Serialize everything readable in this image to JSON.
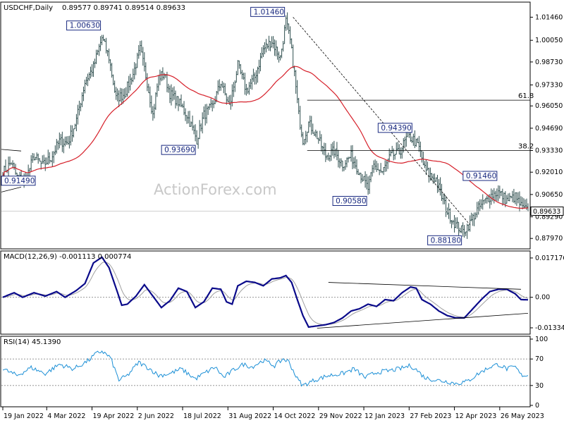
{
  "chart_data": {
    "type": "candlestick",
    "symbol_label": "USDCHF,Daily",
    "ohlc_label": "0.89577 0.89741 0.89514 0.89633",
    "last_price": 0.89633,
    "last_price_label": "0.89633",
    "watermark": "ActionForex.com",
    "price_axis": {
      "range": [
        0.8742,
        1.0225
      ],
      "ticks": [
        "1.01460",
        "1.00050",
        "0.98730",
        "0.97330",
        "0.96050",
        "0.94690",
        "0.93330",
        "0.92010",
        "0.90650",
        "0.89290",
        "0.87970"
      ],
      "tick_values": [
        1.0146,
        1.0005,
        0.9873,
        0.9733,
        0.9605,
        0.9469,
        0.9333,
        0.9201,
        0.9065,
        0.8929,
        0.8797
      ]
    },
    "x_axis": {
      "ticks": [
        "19 Jan 2022",
        "4 Mar 2022",
        "19 Apr 2022",
        "2 Jun 2022",
        "18 Jul 2022",
        "31 Aug 2022",
        "14 Oct 2022",
        "29 Nov 2022",
        "12 Jan 2023",
        "27 Feb 2023",
        "12 Apr 2023",
        "26 May 2023"
      ],
      "tick_index": [
        0,
        31,
        63,
        95,
        127,
        159,
        191,
        223,
        255,
        287,
        319,
        351
      ]
    },
    "bars_total": 372,
    "moving_average": {
      "period": 55,
      "color": "#d6202a"
    },
    "fib_levels": [
      {
        "label": "61.8",
        "price": 0.964
      },
      {
        "label": "38.2",
        "price": 0.9333
      }
    ],
    "swing_points": [
      {
        "label": "0.91490",
        "index": 0,
        "price": 0.9149,
        "pos": "left"
      },
      {
        "label": "1.00630",
        "index": 70,
        "price": 1.0063,
        "pos": "above-left"
      },
      {
        "label": "0.93690",
        "index": 137,
        "price": 0.9369,
        "pos": "below-left"
      },
      {
        "label": "1.01460",
        "index": 200,
        "price": 1.0146,
        "pos": "above-left"
      },
      {
        "label": "0.90580",
        "index": 258,
        "price": 0.9058,
        "pos": "below-left"
      },
      {
        "label": "0.94390",
        "index": 290,
        "price": 0.9439,
        "pos": "above-left"
      },
      {
        "label": "0.88180",
        "index": 325,
        "price": 0.8818,
        "pos": "below-left"
      },
      {
        "label": "0.91460",
        "index": 350,
        "price": 0.9146,
        "pos": "above-left"
      }
    ],
    "anchors": [
      [
        0,
        0.92
      ],
      [
        6,
        0.926
      ],
      [
        10,
        0.917
      ],
      [
        16,
        0.915
      ],
      [
        22,
        0.93
      ],
      [
        28,
        0.924
      ],
      [
        34,
        0.929
      ],
      [
        40,
        0.939
      ],
      [
        46,
        0.938
      ],
      [
        52,
        0.952
      ],
      [
        58,
        0.975
      ],
      [
        64,
        0.984
      ],
      [
        70,
        1.002
      ],
      [
        75,
        0.99
      ],
      [
        80,
        0.965
      ],
      [
        86,
        0.968
      ],
      [
        92,
        0.98
      ],
      [
        97,
        0.995
      ],
      [
        102,
        0.975
      ],
      [
        106,
        0.955
      ],
      [
        110,
        0.978
      ],
      [
        114,
        0.98
      ],
      [
        118,
        0.968
      ],
      [
        124,
        0.963
      ],
      [
        130,
        0.955
      ],
      [
        137,
        0.94
      ],
      [
        142,
        0.955
      ],
      [
        148,
        0.96
      ],
      [
        154,
        0.975
      ],
      [
        160,
        0.96
      ],
      [
        166,
        0.985
      ],
      [
        172,
        0.97
      ],
      [
        178,
        0.978
      ],
      [
        184,
        0.995
      ],
      [
        190,
        1.0
      ],
      [
        196,
        0.99
      ],
      [
        200,
        1.012
      ],
      [
        203,
        1.0
      ],
      [
        206,
        0.98
      ],
      [
        209,
        0.955
      ],
      [
        212,
        0.94
      ],
      [
        216,
        0.95
      ],
      [
        222,
        0.942
      ],
      [
        228,
        0.93
      ],
      [
        234,
        0.933
      ],
      [
        240,
        0.925
      ],
      [
        246,
        0.93
      ],
      [
        252,
        0.92
      ],
      [
        258,
        0.91
      ],
      [
        262,
        0.924
      ],
      [
        268,
        0.92
      ],
      [
        274,
        0.93
      ],
      [
        280,
        0.932
      ],
      [
        286,
        0.942
      ],
      [
        290,
        0.94
      ],
      [
        294,
        0.935
      ],
      [
        298,
        0.922
      ],
      [
        302,
        0.918
      ],
      [
        306,
        0.916
      ],
      [
        310,
        0.905
      ],
      [
        314,
        0.896
      ],
      [
        320,
        0.888
      ],
      [
        325,
        0.884
      ],
      [
        330,
        0.889
      ],
      [
        335,
        0.897
      ],
      [
        340,
        0.902
      ],
      [
        345,
        0.906
      ],
      [
        350,
        0.908
      ],
      [
        356,
        0.903
      ],
      [
        362,
        0.905
      ],
      [
        367,
        0.898
      ],
      [
        371,
        0.8963
      ]
    ],
    "macd": {
      "label": "MACD(12,26,9) -0.001113 0.000774",
      "range": [
        -0.0155,
        0.019
      ],
      "ticks": [
        "0.017176",
        "0.00",
        "-0.01334"
      ],
      "tick_values": [
        0.017176,
        0.0,
        -0.01334
      ],
      "line_color": "#0a0a8a",
      "signal_color": "#a0a0a0",
      "anchors": [
        [
          0,
          0.0
        ],
        [
          8,
          0.002
        ],
        [
          14,
          0.0
        ],
        [
          22,
          0.002
        ],
        [
          30,
          0.0005
        ],
        [
          38,
          0.0025
        ],
        [
          44,
          0.0
        ],
        [
          52,
          0.003
        ],
        [
          58,
          0.006
        ],
        [
          64,
          0.015
        ],
        [
          70,
          0.0175
        ],
        [
          75,
          0.013
        ],
        [
          80,
          0.004
        ],
        [
          84,
          -0.0035
        ],
        [
          88,
          -0.003
        ],
        [
          94,
          0.0005
        ],
        [
          100,
          0.0055
        ],
        [
          106,
          0.0005
        ],
        [
          112,
          -0.0045
        ],
        [
          118,
          -0.0015
        ],
        [
          124,
          0.004
        ],
        [
          130,
          0.0025
        ],
        [
          136,
          -0.0045
        ],
        [
          142,
          -0.002
        ],
        [
          148,
          0.004
        ],
        [
          154,
          0.0035
        ],
        [
          158,
          -0.002
        ],
        [
          162,
          -0.003
        ],
        [
          166,
          0.005
        ],
        [
          172,
          0.007
        ],
        [
          178,
          0.0065
        ],
        [
          184,
          0.005
        ],
        [
          190,
          0.008
        ],
        [
          196,
          0.0085
        ],
        [
          200,
          0.0095
        ],
        [
          204,
          0.0065
        ],
        [
          208,
          -0.001
        ],
        [
          212,
          -0.008
        ],
        [
          216,
          -0.013
        ],
        [
          222,
          -0.0125
        ],
        [
          228,
          -0.012
        ],
        [
          234,
          -0.011
        ],
        [
          240,
          -0.009
        ],
        [
          246,
          -0.006
        ],
        [
          252,
          -0.005
        ],
        [
          258,
          -0.003
        ],
        [
          264,
          -0.004
        ],
        [
          270,
          -0.001
        ],
        [
          276,
          -0.0015
        ],
        [
          282,
          0.002
        ],
        [
          288,
          0.0045
        ],
        [
          292,
          0.004
        ],
        [
          296,
          -0.001
        ],
        [
          302,
          -0.003
        ],
        [
          308,
          -0.006
        ],
        [
          314,
          -0.008
        ],
        [
          320,
          -0.009
        ],
        [
          326,
          -0.009
        ],
        [
          332,
          -0.005
        ],
        [
          338,
          -0.001
        ],
        [
          344,
          0.0025
        ],
        [
          350,
          0.0035
        ],
        [
          356,
          0.0035
        ],
        [
          362,
          0.0015
        ],
        [
          366,
          -0.001
        ],
        [
          371,
          -0.0011
        ]
      ],
      "trendlines": [
        {
          "from": [
            230,
            0.0065
          ],
          "to": [
            366,
            0.0035
          ]
        },
        {
          "from": [
            222,
            -0.0135
          ],
          "to": [
            371,
            -0.007
          ]
        }
      ]
    },
    "rsi": {
      "label": "RSI(14) 45.1390",
      "range": [
        0,
        100
      ],
      "ticks": [
        "100",
        "70",
        "30",
        "0"
      ],
      "tick_values": [
        100,
        70,
        30,
        0
      ],
      "levels": [
        70,
        30
      ],
      "line_color": "#1b8fd6",
      "anchors": [
        [
          0,
          55
        ],
        [
          10,
          45
        ],
        [
          20,
          57
        ],
        [
          30,
          48
        ],
        [
          40,
          62
        ],
        [
          50,
          55
        ],
        [
          60,
          67
        ],
        [
          66,
          78
        ],
        [
          70,
          82
        ],
        [
          76,
          72
        ],
        [
          82,
          38
        ],
        [
          88,
          45
        ],
        [
          96,
          65
        ],
        [
          104,
          55
        ],
        [
          110,
          45
        ],
        [
          118,
          48
        ],
        [
          126,
          55
        ],
        [
          136,
          40
        ],
        [
          142,
          48
        ],
        [
          150,
          58
        ],
        [
          156,
          42
        ],
        [
          164,
          55
        ],
        [
          170,
          62
        ],
        [
          176,
          58
        ],
        [
          184,
          68
        ],
        [
          192,
          60
        ],
        [
          198,
          70
        ],
        [
          202,
          66
        ],
        [
          208,
          40
        ],
        [
          212,
          30
        ],
        [
          220,
          38
        ],
        [
          230,
          45
        ],
        [
          240,
          48
        ],
        [
          248,
          55
        ],
        [
          256,
          42
        ],
        [
          264,
          50
        ],
        [
          272,
          52
        ],
        [
          280,
          55
        ],
        [
          288,
          60
        ],
        [
          292,
          54
        ],
        [
          298,
          42
        ],
        [
          306,
          38
        ],
        [
          314,
          36
        ],
        [
          320,
          33
        ],
        [
          328,
          36
        ],
        [
          336,
          48
        ],
        [
          344,
          58
        ],
        [
          350,
          62
        ],
        [
          356,
          55
        ],
        [
          362,
          58
        ],
        [
          366,
          46
        ],
        [
          371,
          45.1
        ]
      ]
    }
  }
}
